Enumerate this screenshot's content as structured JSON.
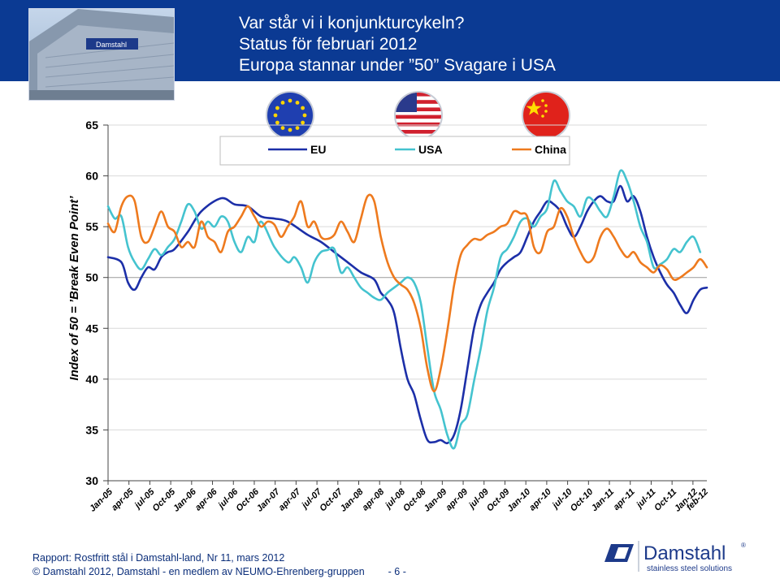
{
  "header": {
    "line1": "Var står vi i konjunkturcykeln?",
    "line2": "Status för februari 2012",
    "line3": "Europa stannar under ”50” Svagare i USA",
    "background": "#0b3a93"
  },
  "photo": {
    "sign_text": "Damstahl"
  },
  "flags": [
    "eu-flag-icon",
    "us-flag-icon",
    "china-flag-icon"
  ],
  "footer": {
    "report": "Rapport: Rostfritt stål i Damstahl-land, Nr 11, mars 2012",
    "copyright": "© Damstahl 2012, Damstahl - en medlem av NEUMO-Ehrenberg-gruppen",
    "page": "- 6 -"
  },
  "logo": {
    "name": "Damstahl",
    "tagline": "stainless steel solutions",
    "registered": "®"
  },
  "chart_data": {
    "type": "line",
    "ylabel": "Index of 50 = ’Break Even Point’",
    "ylim": [
      30,
      65
    ],
    "yticks": [
      30,
      35,
      40,
      45,
      50,
      55,
      60,
      65
    ],
    "grid": "horizontal",
    "reference_line": 50,
    "legend_position": "top-right",
    "x_tick_labels": [
      "Jan-05",
      "apr-05",
      "jul-05",
      "Oct-05",
      "Jan-06",
      "apr-06",
      "jul-06",
      "Oct-06",
      "Jan-07",
      "apr-07",
      "jul-07",
      "Oct-07",
      "Jan-08",
      "apr-08",
      "jul-08",
      "Oct-08",
      "Jan-09",
      "apr-09",
      "jul-09",
      "Oct-09",
      "Jan-10",
      "apr-10",
      "jul-10",
      "Oct-10",
      "Jan-11",
      "apr-11",
      "jul-11",
      "Oct-11",
      "Jan-12"
    ],
    "end_label": "feb-12",
    "series": [
      {
        "name": "EU",
        "color": "#1c2fa8",
        "anchors": [
          [
            0,
            52
          ],
          [
            2,
            51.5
          ],
          [
            3,
            49.5
          ],
          [
            4,
            48.8
          ],
          [
            5,
            50
          ],
          [
            6,
            51
          ],
          [
            7,
            50.8
          ],
          [
            8,
            52
          ],
          [
            9,
            52.5
          ],
          [
            10,
            52.8
          ],
          [
            12,
            54.5
          ],
          [
            14,
            56.5
          ],
          [
            17,
            57.8
          ],
          [
            19,
            57.2
          ],
          [
            21,
            57
          ],
          [
            23,
            56
          ],
          [
            25,
            55.8
          ],
          [
            27,
            55.5
          ],
          [
            30,
            54.2
          ],
          [
            32,
            53.5
          ],
          [
            34,
            52.5
          ],
          [
            36,
            51.5
          ],
          [
            38,
            50.5
          ],
          [
            40,
            49.8
          ],
          [
            41,
            48.5
          ],
          [
            42,
            47.8
          ],
          [
            43,
            46.5
          ],
          [
            44,
            43
          ],
          [
            45,
            40
          ],
          [
            46,
            38.5
          ],
          [
            47,
            36
          ],
          [
            48,
            34
          ],
          [
            49,
            33.8
          ],
          [
            50,
            34
          ],
          [
            51,
            33.7
          ],
          [
            52,
            34.5
          ],
          [
            53,
            37
          ],
          [
            54,
            41
          ],
          [
            55,
            45
          ],
          [
            56,
            47.3
          ],
          [
            57,
            48.5
          ],
          [
            58,
            49.5
          ],
          [
            59,
            50.8
          ],
          [
            60,
            51.5
          ],
          [
            61,
            52
          ],
          [
            62,
            52.5
          ],
          [
            63,
            54
          ],
          [
            64,
            55.5
          ],
          [
            65,
            56.5
          ],
          [
            66,
            57.5
          ],
          [
            67,
            57.2
          ],
          [
            68,
            56.5
          ],
          [
            69,
            55
          ],
          [
            70,
            54
          ],
          [
            71,
            55
          ],
          [
            72,
            56.5
          ],
          [
            73,
            57.5
          ],
          [
            74,
            58
          ],
          [
            75,
            57.5
          ],
          [
            76,
            57.5
          ],
          [
            77,
            59
          ],
          [
            78,
            57.5
          ],
          [
            79,
            58
          ],
          [
            80,
            56.5
          ],
          [
            81,
            54
          ],
          [
            82,
            52
          ],
          [
            83,
            50.5
          ],
          [
            84,
            49.3
          ],
          [
            85,
            48.5
          ],
          [
            86,
            47.3
          ],
          [
            87,
            46.5
          ],
          [
            88,
            47.8
          ],
          [
            89,
            48.8
          ],
          [
            90,
            49
          ]
        ]
      },
      {
        "name": "USA",
        "color": "#44c3cf",
        "anchors": [
          [
            0,
            57
          ],
          [
            1,
            55.8
          ],
          [
            2,
            56
          ],
          [
            3,
            53
          ],
          [
            4,
            51.5
          ],
          [
            5,
            50.8
          ],
          [
            6,
            51.8
          ],
          [
            7,
            52.8
          ],
          [
            8,
            52.2
          ],
          [
            9,
            53
          ],
          [
            10,
            53.8
          ],
          [
            11,
            55.5
          ],
          [
            12,
            57.2
          ],
          [
            13,
            56.5
          ],
          [
            14,
            54.8
          ],
          [
            15,
            55.5
          ],
          [
            16,
            55
          ],
          [
            17,
            56
          ],
          [
            18,
            55.5
          ],
          [
            19,
            53.5
          ],
          [
            20,
            52.5
          ],
          [
            21,
            54
          ],
          [
            22,
            53.5
          ],
          [
            23,
            55.5
          ],
          [
            25,
            53
          ],
          [
            27,
            51.5
          ],
          [
            28,
            52
          ],
          [
            29,
            51
          ],
          [
            30,
            49.5
          ],
          [
            31,
            51.5
          ],
          [
            32,
            52.5
          ],
          [
            33,
            52.7
          ],
          [
            34,
            52.8
          ],
          [
            35,
            50.5
          ],
          [
            36,
            51
          ],
          [
            37,
            50
          ],
          [
            38,
            49
          ],
          [
            39,
            48.5
          ],
          [
            40,
            48
          ],
          [
            41,
            47.8
          ],
          [
            42,
            48.5
          ],
          [
            43,
            49
          ],
          [
            44,
            49.5
          ],
          [
            45,
            50
          ],
          [
            46,
            49.5
          ],
          [
            47,
            47.5
          ],
          [
            48,
            43
          ],
          [
            49,
            38.8
          ],
          [
            50,
            37
          ],
          [
            51,
            34.5
          ],
          [
            52,
            33.2
          ],
          [
            53,
            35.5
          ],
          [
            54,
            36.5
          ],
          [
            55,
            39.8
          ],
          [
            56,
            43
          ],
          [
            57,
            46.7
          ],
          [
            58,
            49
          ],
          [
            59,
            52
          ],
          [
            60,
            52.8
          ],
          [
            61,
            54
          ],
          [
            62,
            55.5
          ],
          [
            63,
            55.8
          ],
          [
            64,
            55
          ],
          [
            65,
            56
          ],
          [
            66,
            56.8
          ],
          [
            67,
            59.5
          ],
          [
            68,
            58.5
          ],
          [
            69,
            57.5
          ],
          [
            70,
            57
          ],
          [
            71,
            56
          ],
          [
            72,
            57.8
          ],
          [
            73,
            57.5
          ],
          [
            74,
            56.5
          ],
          [
            75,
            56
          ],
          [
            76,
            58
          ],
          [
            77,
            60.5
          ],
          [
            78,
            59.5
          ],
          [
            79,
            57.5
          ],
          [
            80,
            55
          ],
          [
            81,
            53.5
          ],
          [
            82,
            51
          ],
          [
            83,
            51.3
          ],
          [
            84,
            51.8
          ],
          [
            85,
            52.8
          ],
          [
            86,
            52.5
          ],
          [
            87,
            53.5
          ],
          [
            88,
            54
          ],
          [
            89,
            52.5
          ]
        ]
      },
      {
        "name": "China",
        "color": "#ee7a1e",
        "anchors": [
          [
            0,
            55.3
          ],
          [
            1,
            54.5
          ],
          [
            2,
            57
          ],
          [
            3,
            58
          ],
          [
            4,
            57.5
          ],
          [
            5,
            54
          ],
          [
            6,
            53.5
          ],
          [
            7,
            55
          ],
          [
            8,
            56.5
          ],
          [
            9,
            55
          ],
          [
            10,
            54.5
          ],
          [
            11,
            53
          ],
          [
            12,
            53.5
          ],
          [
            13,
            53
          ],
          [
            14,
            55.5
          ],
          [
            15,
            54
          ],
          [
            16,
            53.5
          ],
          [
            17,
            52.5
          ],
          [
            18,
            54.5
          ],
          [
            19,
            55
          ],
          [
            20,
            56
          ],
          [
            21,
            57
          ],
          [
            22,
            56
          ],
          [
            23,
            55
          ],
          [
            24,
            55.5
          ],
          [
            25,
            55.2
          ],
          [
            26,
            54
          ],
          [
            27,
            55
          ],
          [
            28,
            56
          ],
          [
            29,
            57.5
          ],
          [
            30,
            55
          ],
          [
            31,
            55.5
          ],
          [
            32,
            54
          ],
          [
            33,
            53.8
          ],
          [
            34,
            54.2
          ],
          [
            35,
            55.5
          ],
          [
            36,
            54.5
          ],
          [
            37,
            53.5
          ],
          [
            38,
            55.8
          ],
          [
            39,
            58
          ],
          [
            40,
            57.5
          ],
          [
            41,
            54
          ],
          [
            42,
            51.5
          ],
          [
            43,
            50
          ],
          [
            44,
            49.3
          ],
          [
            45,
            48.8
          ],
          [
            46,
            47.5
          ],
          [
            47,
            45
          ],
          [
            48,
            41
          ],
          [
            49,
            38.8
          ],
          [
            50,
            41
          ],
          [
            51,
            44.8
          ],
          [
            52,
            49.2
          ],
          [
            53,
            52.2
          ],
          [
            54,
            53.2
          ],
          [
            55,
            53.8
          ],
          [
            56,
            53.7
          ],
          [
            57,
            54.2
          ],
          [
            58,
            54.5
          ],
          [
            59,
            55
          ],
          [
            60,
            55.3
          ],
          [
            61,
            56.5
          ],
          [
            62,
            56.3
          ],
          [
            63,
            56
          ],
          [
            64,
            53
          ],
          [
            65,
            52.5
          ],
          [
            66,
            54.5
          ],
          [
            67,
            55
          ],
          [
            68,
            56.8
          ],
          [
            69,
            56
          ],
          [
            70,
            54
          ],
          [
            71,
            52.5
          ],
          [
            72,
            51.5
          ],
          [
            73,
            52
          ],
          [
            74,
            54
          ],
          [
            75,
            54.8
          ],
          [
            76,
            54
          ],
          [
            77,
            52.8
          ],
          [
            78,
            52
          ],
          [
            79,
            52.5
          ],
          [
            80,
            51.5
          ],
          [
            81,
            51
          ],
          [
            82,
            50.5
          ],
          [
            83,
            51.2
          ],
          [
            84,
            50.8
          ],
          [
            85,
            49.8
          ],
          [
            86,
            50
          ],
          [
            87,
            50.5
          ],
          [
            88,
            51
          ],
          [
            89,
            51.8
          ],
          [
            90,
            51
          ]
        ]
      }
    ]
  }
}
